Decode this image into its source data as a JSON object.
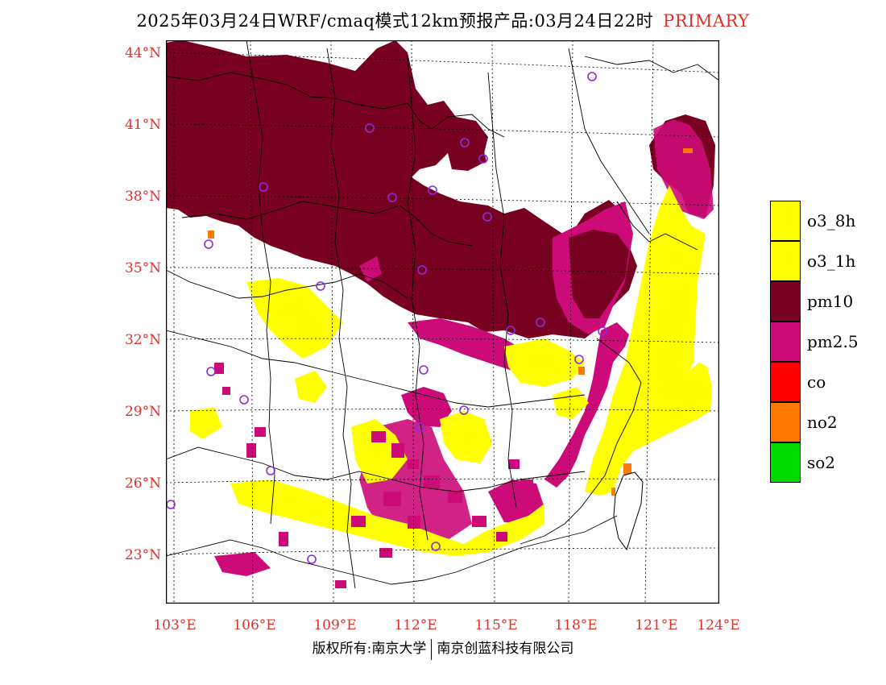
{
  "title": {
    "main": "2025年03月24日WRF/cmaq模式12km预报产品:03月24日22时",
    "tag": "PRIMARY"
  },
  "map": {
    "lat_labels": [
      "44°N",
      "41°N",
      "38°N",
      "35°N",
      "32°N",
      "29°N",
      "26°N",
      "23°N"
    ],
    "lon_labels": [
      "103°E",
      "106°E",
      "109°E",
      "112°E",
      "115°E",
      "118°E",
      "121°E",
      "124°E"
    ],
    "colors": {
      "pm10": "#780020",
      "pm25": "#cc0a78",
      "o3": "#ffff00",
      "no2": "#ff7800",
      "station_marker": "#8a2be2"
    }
  },
  "legend": [
    {
      "label": "o3_8h",
      "color": "#ffff00"
    },
    {
      "label": "o3_1h",
      "color": "#ffff00"
    },
    {
      "label": "pm10",
      "color": "#780020"
    },
    {
      "label": "pm2.5",
      "color": "#cc0a78"
    },
    {
      "label": "co",
      "color": "#ff0000"
    },
    {
      "label": "no2",
      "color": "#ff7800"
    },
    {
      "label": "so2",
      "color": "#00dc00"
    }
  ],
  "footer": {
    "left": "版权所有:南京大学",
    "right": "南京创蓝科技有限公司"
  }
}
